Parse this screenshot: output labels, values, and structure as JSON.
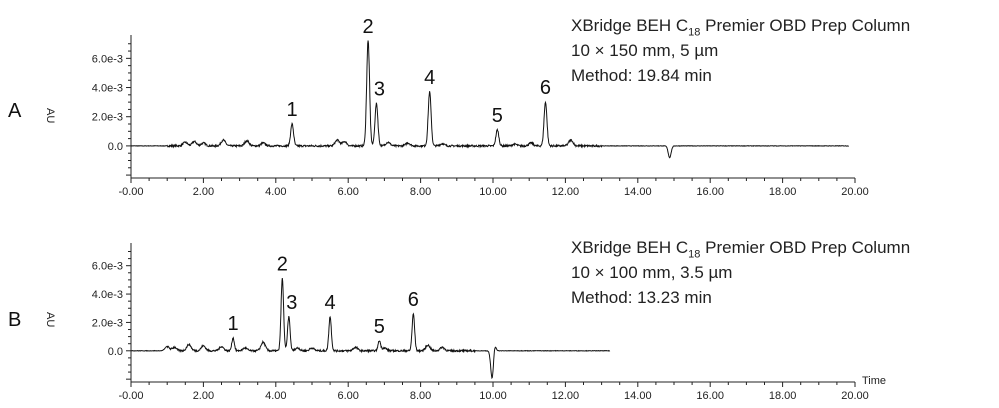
{
  "chart_data": [
    {
      "type": "line",
      "panel": "A",
      "ylabel": "AU",
      "y_tick_labels": [
        "0.0",
        "2.0e-3",
        "4.0e-3",
        "6.0e-3"
      ],
      "y_ticks": [
        0,
        0.002,
        0.004,
        0.006
      ],
      "ylim": [
        -0.0022,
        0.0076
      ],
      "x_tick_labels": [
        "-0.00",
        "2.00",
        "4.00",
        "6.00",
        "8.00",
        "10.00",
        "12.00",
        "14.00",
        "16.00",
        "18.00",
        "20.00"
      ],
      "x_ticks": [
        0,
        2,
        4,
        6,
        8,
        10,
        12,
        14,
        16,
        18,
        20
      ],
      "xlim": [
        0,
        20
      ],
      "x_end": 19.84,
      "peaks": [
        {
          "label": "1",
          "x": 4.45,
          "y": 0.0015
        },
        {
          "label": "2",
          "x": 6.55,
          "y": 0.0072
        },
        {
          "label": "3",
          "x": 6.78,
          "y": 0.0029
        },
        {
          "label": "4",
          "x": 8.25,
          "y": 0.0037
        },
        {
          "label": "5",
          "x": 10.12,
          "y": 0.0011
        },
        {
          "label": "6",
          "x": 11.45,
          "y": 0.003
        }
      ],
      "info": {
        "column_prefix": "XBridge BEH C",
        "column_sub": "18",
        "column_suffix": " Premier OBD Prep Column",
        "dimensions": "10 × 150 mm, 5 µm",
        "method": "Method: 19.84 min"
      }
    },
    {
      "type": "line",
      "panel": "B",
      "ylabel": "AU",
      "xlabel": "Time",
      "y_tick_labels": [
        "0.0",
        "2.0e-3",
        "4.0e-3",
        "6.0e-3"
      ],
      "y_ticks": [
        0,
        0.002,
        0.004,
        0.006
      ],
      "ylim": [
        -0.0022,
        0.0076
      ],
      "x_tick_labels": [
        "-0.00",
        "2.00",
        "4.00",
        "6.00",
        "8.00",
        "10.00",
        "12.00",
        "14.00",
        "16.00",
        "18.00",
        "20.00"
      ],
      "x_ticks": [
        0,
        2,
        4,
        6,
        8,
        10,
        12,
        14,
        16,
        18,
        20
      ],
      "xlim": [
        0,
        20
      ],
      "x_end": 13.23,
      "peaks": [
        {
          "label": "1",
          "x": 2.82,
          "y": 0.0009
        },
        {
          "label": "2",
          "x": 4.18,
          "y": 0.0051
        },
        {
          "label": "3",
          "x": 4.36,
          "y": 0.0024
        },
        {
          "label": "4",
          "x": 5.5,
          "y": 0.0024
        },
        {
          "label": "5",
          "x": 6.86,
          "y": 0.0007
        },
        {
          "label": "6",
          "x": 7.8,
          "y": 0.0026
        }
      ],
      "info": {
        "column_prefix": "XBridge BEH C",
        "column_sub": "18",
        "column_suffix": " Premier OBD Prep Column",
        "dimensions": "10 × 100 mm, 3.5 µm",
        "method": "Method: 13.23 min"
      }
    }
  ]
}
